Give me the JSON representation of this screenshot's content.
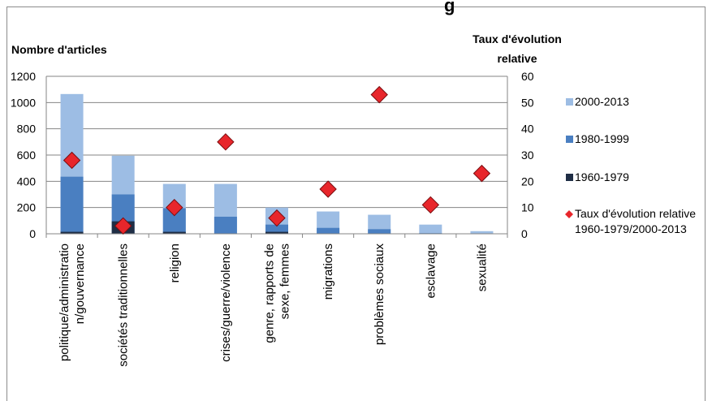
{
  "chart_data": {
    "type": "bar",
    "title_fragment": "g",
    "ylabel": "Nombre d'articles",
    "y2label_lines": [
      "Taux d'évolution",
      "relative"
    ],
    "ylim": [
      0,
      1200
    ],
    "y_ticks": [
      "0",
      "200",
      "400",
      "600",
      "800",
      "1000",
      "1200"
    ],
    "y2lim": [
      0,
      60
    ],
    "y2_ticks": [
      "0",
      "10",
      "20",
      "30",
      "40",
      "50",
      "60"
    ],
    "grid": true,
    "legend_position": "right",
    "categories": [
      [
        "politique/administratio",
        "n/gouvernance"
      ],
      [
        "sociétés traditionnelles"
      ],
      [
        "religion"
      ],
      [
        "crises/guerre/violence"
      ],
      [
        "genre, rapports de",
        "sexe, femmes"
      ],
      [
        "migrations"
      ],
      [
        "problèmes sociaux"
      ],
      [
        "esclavage"
      ],
      [
        "sexualité"
      ]
    ],
    "series": [
      {
        "name": "1960-1979",
        "color": "#1f2e45",
        "values": [
          15,
          95,
          15,
          0,
          15,
          0,
          0,
          0,
          0
        ]
      },
      {
        "name": "1980-1999",
        "color": "#4a7fc1",
        "values": [
          435,
          300,
          195,
          130,
          70,
          45,
          35,
          5,
          0
        ]
      },
      {
        "name": "2000-2013",
        "color": "#9dbde4",
        "values": [
          1065,
          595,
          380,
          380,
          200,
          170,
          145,
          70,
          20
        ]
      }
    ],
    "line_series": {
      "name_lines": [
        "Taux d'évolution relative",
        "1960-1979/2000-2013"
      ],
      "color": "#e8262b",
      "axis": "y2",
      "values": [
        28,
        3,
        10,
        35,
        6,
        17,
        53,
        11,
        23
      ]
    }
  }
}
